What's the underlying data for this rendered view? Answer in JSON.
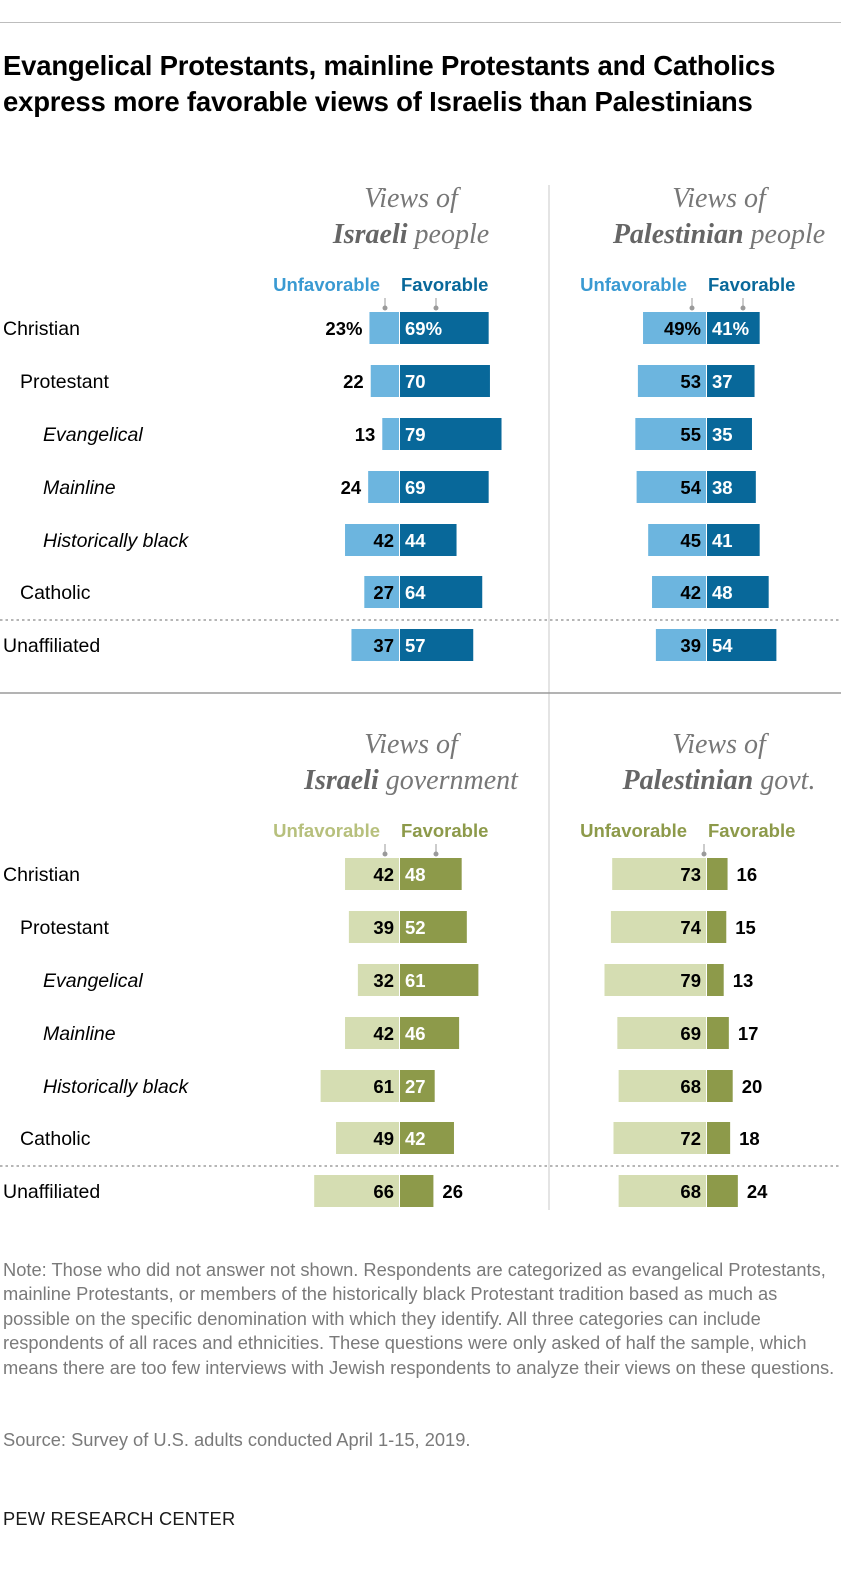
{
  "title": "Evangelical Protestants, mainline Protestants and Catholics express more favorable views of Israelis than Palestinians",
  "colors": {
    "people_unfavorable": "#6cb5df",
    "people_favorable": "#08689a",
    "people_unfav_label": "#3a9ad2",
    "gov_unfavorable": "#d5ddb2",
    "gov_favorable": "#8d9a4a",
    "gov_unfav_label": "#b7c07d",
    "header_text": "#777777",
    "rule": "#9a9a9a"
  },
  "legend": {
    "unfavorable": "Unfavorable",
    "favorable": "Favorable"
  },
  "rows": [
    {
      "label": "Christian",
      "style": "normal",
      "indent": 0
    },
    {
      "label": "Protestant",
      "style": "normal",
      "indent": 1
    },
    {
      "label": "Evangelical",
      "style": "italic",
      "indent": 2
    },
    {
      "label": "Mainline",
      "style": "italic",
      "indent": 2
    },
    {
      "label": "Historically black",
      "style": "italic",
      "indent": 2
    },
    {
      "label": "Catholic",
      "style": "normal",
      "indent": 1
    },
    {
      "label": "Unaffiliated",
      "style": "normal",
      "indent": 0
    }
  ],
  "chart_data": [
    {
      "type": "bar",
      "subtype": "diverging",
      "title": "Views of Israeli people",
      "title_line1": "Views of",
      "title_bold": "Israeli",
      "title_rest": " people",
      "categories": [
        "Christian",
        "Protestant",
        "Evangelical",
        "Mainline",
        "Historically black",
        "Catholic",
        "Unaffiliated"
      ],
      "series": [
        {
          "name": "Unfavorable",
          "values": [
            23,
            22,
            13,
            24,
            42,
            27,
            37
          ]
        },
        {
          "name": "Favorable",
          "values": [
            69,
            70,
            79,
            69,
            44,
            64,
            57
          ]
        }
      ],
      "value_labels": {
        "Unfavorable": [
          "23%",
          "22",
          "13",
          "24",
          "42",
          "27",
          "37"
        ],
        "Favorable": [
          "69%",
          "70",
          "79",
          "69",
          "44",
          "64",
          "57"
        ]
      },
      "ylabel": "%"
    },
    {
      "type": "bar",
      "subtype": "diverging",
      "title": "Views of Palestinian people",
      "title_line1": "Views of",
      "title_bold": "Palestinian",
      "title_rest": " people",
      "categories": [
        "Christian",
        "Protestant",
        "Evangelical",
        "Mainline",
        "Historically black",
        "Catholic",
        "Unaffiliated"
      ],
      "series": [
        {
          "name": "Unfavorable",
          "values": [
            49,
            53,
            55,
            54,
            45,
            42,
            39
          ]
        },
        {
          "name": "Favorable",
          "values": [
            41,
            37,
            35,
            38,
            41,
            48,
            54
          ]
        }
      ],
      "value_labels": {
        "Unfavorable": [
          "49%",
          "53",
          "55",
          "54",
          "45",
          "42",
          "39"
        ],
        "Favorable": [
          "41%",
          "37",
          "35",
          "38",
          "41",
          "48",
          "54"
        ]
      },
      "ylabel": "%"
    },
    {
      "type": "bar",
      "subtype": "diverging",
      "title": "Views of Israeli government",
      "title_line1": "Views of",
      "title_bold": "Israeli",
      "title_rest": " government",
      "categories": [
        "Christian",
        "Protestant",
        "Evangelical",
        "Mainline",
        "Historically black",
        "Catholic",
        "Unaffiliated"
      ],
      "series": [
        {
          "name": "Unfavorable",
          "values": [
            42,
            39,
            32,
            42,
            61,
            49,
            66
          ]
        },
        {
          "name": "Favorable",
          "values": [
            48,
            52,
            61,
            46,
            27,
            42,
            26
          ]
        }
      ],
      "value_labels": {
        "Unfavorable": [
          "42",
          "39",
          "32",
          "42",
          "61",
          "49",
          "66"
        ],
        "Favorable": [
          "48",
          "52",
          "61",
          "46",
          "27",
          "42",
          "26"
        ]
      },
      "ylabel": "%"
    },
    {
      "type": "bar",
      "subtype": "diverging",
      "title": "Views of Palestinian govt.",
      "title_line1": "Views of",
      "title_bold": "Palestinian",
      "title_rest": " govt.",
      "categories": [
        "Christian",
        "Protestant",
        "Evangelical",
        "Mainline",
        "Historically black",
        "Catholic",
        "Unaffiliated"
      ],
      "series": [
        {
          "name": "Unfavorable",
          "values": [
            73,
            74,
            79,
            69,
            68,
            72,
            68
          ]
        },
        {
          "name": "Favorable",
          "values": [
            16,
            15,
            13,
            17,
            20,
            18,
            24
          ]
        }
      ],
      "value_labels": {
        "Unfavorable": [
          "73",
          "74",
          "79",
          "69",
          "68",
          "72",
          "68"
        ],
        "Favorable": [
          "16",
          "15",
          "13",
          "17",
          "20",
          "18",
          "24"
        ]
      },
      "ylabel": "%"
    }
  ],
  "note": "Note: Those who did not answer not shown. Respondents are categorized as evangelical Protestants, mainline Protestants, or members of the historically black Protestant tradition based as much as possible on the specific denomination with which they identify. All three categories can include respondents of all races and ethnicities.  These questions were only asked of half the sample, which means there are too few interviews with Jewish respondents to analyze their views on these questions.",
  "source": "Source: Survey of U.S. adults conducted April 1-15, 2019.",
  "brand": "PEW RESEARCH CENTER"
}
